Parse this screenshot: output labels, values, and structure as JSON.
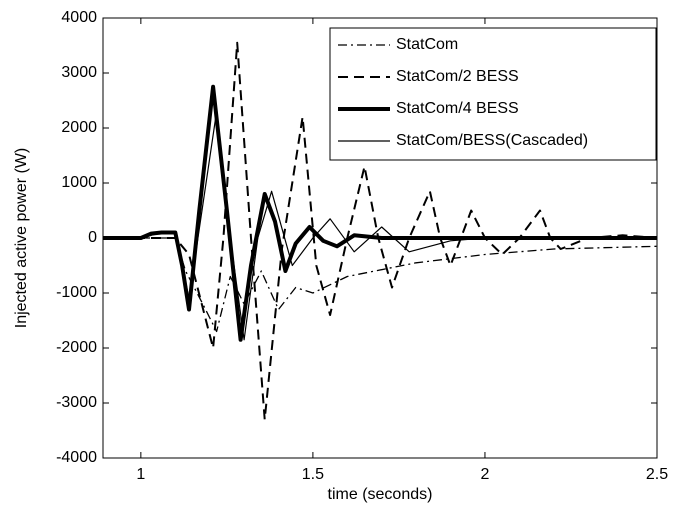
{
  "chart_data": {
    "type": "line",
    "x_label": "time (seconds)",
    "y_label": "Injected active power (W)",
    "xlim": [
      0.89,
      2.5
    ],
    "xticks": [
      1,
      1.5,
      2,
      2.5
    ],
    "ylim": [
      -4000,
      4000
    ],
    "yticks": [
      -4000,
      -3000,
      -2000,
      -1000,
      0,
      1000,
      2000,
      3000,
      4000
    ],
    "grid": false,
    "legend": "upper right",
    "series": [
      {
        "name": "StatCom",
        "color": "#000000",
        "style": "dashdot",
        "width": 1.3,
        "x": [
          0.89,
          1.1,
          1.13,
          1.18,
          1.22,
          1.26,
          1.3,
          1.35,
          1.4,
          1.45,
          1.5,
          1.6,
          1.8,
          2.0,
          2.2,
          2.5
        ],
        "values": [
          0,
          0,
          -600,
          -1200,
          -1700,
          -700,
          -1200,
          -600,
          -1300,
          -900,
          -1000,
          -700,
          -450,
          -300,
          -200,
          -150
        ]
      },
      {
        "name": "StatCom/2 BESS",
        "color": "#000000",
        "style": "dashed",
        "width": 2,
        "x": [
          0.89,
          1.1,
          1.14,
          1.21,
          1.24,
          1.28,
          1.32,
          1.36,
          1.41,
          1.47,
          1.51,
          1.55,
          1.6,
          1.65,
          1.69,
          1.73,
          1.78,
          1.84,
          1.87,
          1.9,
          1.93,
          1.96,
          2.0,
          2.05,
          2.1,
          2.16,
          2.19,
          2.22,
          2.3,
          2.4,
          2.5
        ],
        "values": [
          0,
          0,
          -300,
          -2000,
          0,
          3550,
          0,
          -3300,
          -200,
          2200,
          -500,
          -1400,
          0,
          1300,
          0,
          -900,
          0,
          850,
          0,
          -500,
          0,
          500,
          0,
          -300,
          0,
          500,
          0,
          -200,
          0,
          50,
          0
        ]
      },
      {
        "name": "StatCom/4 BESS",
        "color": "#000000",
        "style": "solid",
        "width": 4,
        "x": [
          0.89,
          1.0,
          1.03,
          1.06,
          1.1,
          1.12,
          1.14,
          1.17,
          1.21,
          1.25,
          1.29,
          1.32,
          1.36,
          1.39,
          1.42,
          1.45,
          1.49,
          1.53,
          1.57,
          1.62,
          1.7,
          2.5
        ],
        "values": [
          0,
          0,
          80,
          100,
          100,
          -500,
          -1300,
          500,
          2750,
          500,
          -1850,
          -500,
          800,
          300,
          -600,
          -100,
          200,
          -50,
          -150,
          50,
          0,
          0
        ]
      },
      {
        "name": "StatCom/BESS(Cascaded)",
        "color": "#000000",
        "style": "solid",
        "width": 1.2,
        "x": [
          0.89,
          1.0,
          1.06,
          1.1,
          1.14,
          1.18,
          1.22,
          1.26,
          1.3,
          1.34,
          1.38,
          1.44,
          1.5,
          1.55,
          1.62,
          1.7,
          1.78,
          1.9,
          2.0,
          2.5
        ],
        "values": [
          0,
          0,
          100,
          100,
          -1100,
          600,
          2300,
          0,
          -1850,
          0,
          850,
          -500,
          0,
          350,
          -250,
          200,
          -250,
          -50,
          0,
          0
        ]
      }
    ]
  }
}
